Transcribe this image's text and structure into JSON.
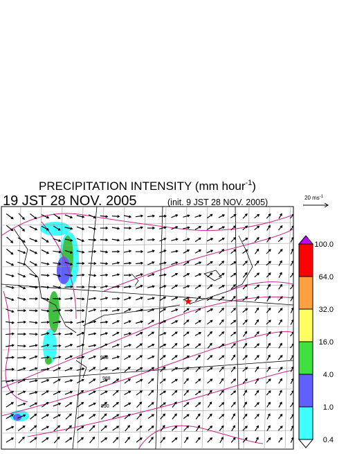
{
  "header": {
    "title": {
      "main": "PRECIPITATION INTENSITY (mm hour",
      "superscript": "-1",
      "end": ")"
    },
    "valid_time": "19 JST 28 NOV. 2005",
    "init_time": "(init. 9 JST 28 NOV. 2005)"
  },
  "wind_reference": {
    "label": "20 ms",
    "superscript": "-1"
  },
  "colorbar": {
    "labels": [
      "100.0",
      "64.0",
      "32.0",
      "16.0",
      "4.0",
      "1.0",
      "0.4"
    ]
  },
  "isobar_labels": [
    "988",
    "988",
    "990"
  ]
}
